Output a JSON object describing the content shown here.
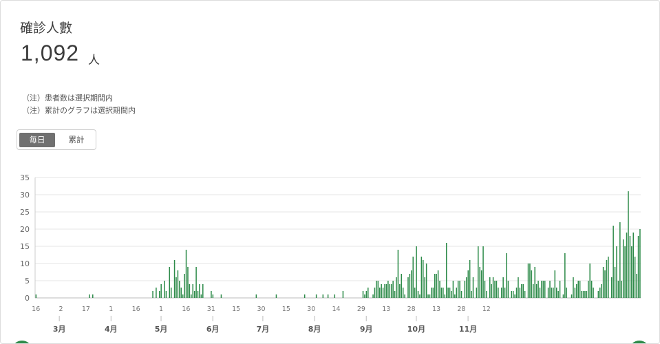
{
  "card": {
    "title": "確診人數",
    "total": "1,092",
    "unit": "人",
    "notes": [
      "（注）患者数は選択期間内",
      "（注）累計のグラフは選択期間内"
    ]
  },
  "toggle": {
    "daily_label": "毎日",
    "cumulative_label": "累計"
  },
  "colors": {
    "bar": "#2e8b4a",
    "grid": "#e6e6e6",
    "axis": "#9e9e9e"
  },
  "chart_data": {
    "type": "bar",
    "x_start": "2020-02-16",
    "ylim": [
      0,
      35
    ],
    "yticks": [
      0,
      5,
      10,
      15,
      20,
      25,
      30,
      35
    ],
    "xtick_labels": [
      "16",
      "2",
      "17",
      "1",
      "16",
      "1",
      "16",
      "31",
      "15",
      "30",
      "15",
      "30",
      "14",
      "29",
      "13",
      "28",
      "13",
      "28",
      "12"
    ],
    "month_labels": [
      "3月",
      "4月",
      "5月",
      "6月",
      "7月",
      "8月",
      "9月",
      "10月",
      "11月"
    ],
    "values": [
      1,
      0,
      0,
      0,
      0,
      0,
      0,
      0,
      0,
      0,
      0,
      0,
      0,
      0,
      0,
      0,
      0,
      0,
      0,
      0,
      0,
      0,
      0,
      0,
      0,
      0,
      0,
      0,
      0,
      0,
      0,
      0,
      1,
      0,
      1,
      0,
      0,
      0,
      0,
      0,
      0,
      0,
      0,
      0,
      0,
      0,
      0,
      0,
      0,
      0,
      0,
      0,
      0,
      0,
      0,
      0,
      0,
      0,
      0,
      0,
      0,
      0,
      0,
      0,
      0,
      0,
      0,
      0,
      0,
      0,
      2,
      0,
      3,
      0,
      2,
      4,
      0,
      5,
      2,
      0,
      9,
      3,
      0,
      11,
      6,
      8,
      5,
      3,
      1,
      7,
      14,
      9,
      4,
      1,
      4,
      2,
      9,
      2,
      4,
      1,
      4,
      0,
      0,
      0,
      0,
      2,
      1,
      0,
      0,
      0,
      0,
      1,
      0,
      0,
      0,
      0,
      0,
      0,
      0,
      0,
      0,
      0,
      0,
      0,
      0,
      0,
      0,
      0,
      0,
      0,
      0,
      0,
      1,
      0,
      0,
      0,
      0,
      0,
      0,
      0,
      0,
      0,
      0,
      0,
      1,
      0,
      0,
      0,
      0,
      0,
      0,
      0,
      0,
      0,
      0,
      0,
      0,
      0,
      0,
      0,
      0,
      1,
      0,
      0,
      0,
      0,
      0,
      0,
      1,
      0,
      0,
      0,
      1,
      0,
      0,
      1,
      0,
      0,
      0,
      1,
      0,
      0,
      0,
      0,
      2,
      0,
      0,
      0,
      0,
      0,
      0,
      0,
      0,
      0,
      0,
      0,
      2,
      1,
      2,
      3,
      0,
      0,
      1,
      3,
      5,
      5,
      3,
      4,
      3,
      4,
      4,
      5,
      4,
      4,
      5,
      2,
      6,
      14,
      4,
      7,
      3,
      1,
      0,
      6,
      7,
      8,
      12,
      3,
      15,
      2,
      1,
      12,
      11,
      6,
      10,
      1,
      1,
      3,
      3,
      7,
      7,
      8,
      5,
      3,
      3,
      1,
      16,
      3,
      3,
      2,
      5,
      1,
      3,
      5,
      5,
      2,
      0,
      5,
      6,
      8,
      11,
      2,
      6,
      0,
      3,
      15,
      9,
      8,
      15,
      5,
      2,
      0,
      6,
      4,
      6,
      5,
      5,
      3,
      0,
      3,
      6,
      3,
      13,
      5,
      0,
      2,
      2,
      1,
      3,
      6,
      3,
      4,
      4,
      2,
      0,
      10,
      10,
      8,
      4,
      9,
      4,
      5,
      3,
      5,
      5,
      5,
      0,
      3,
      5,
      3,
      3,
      8,
      3,
      2,
      5,
      0,
      1,
      13,
      3,
      0,
      0,
      1,
      6,
      3,
      4,
      5,
      5,
      2,
      2,
      2,
      2,
      5,
      10,
      5,
      3,
      0,
      0,
      2,
      3,
      4,
      9,
      8,
      11,
      12,
      0,
      6,
      21,
      9,
      15,
      5,
      22,
      5,
      17,
      15,
      19,
      31,
      18,
      15,
      19,
      12,
      7,
      18,
      20
    ]
  }
}
